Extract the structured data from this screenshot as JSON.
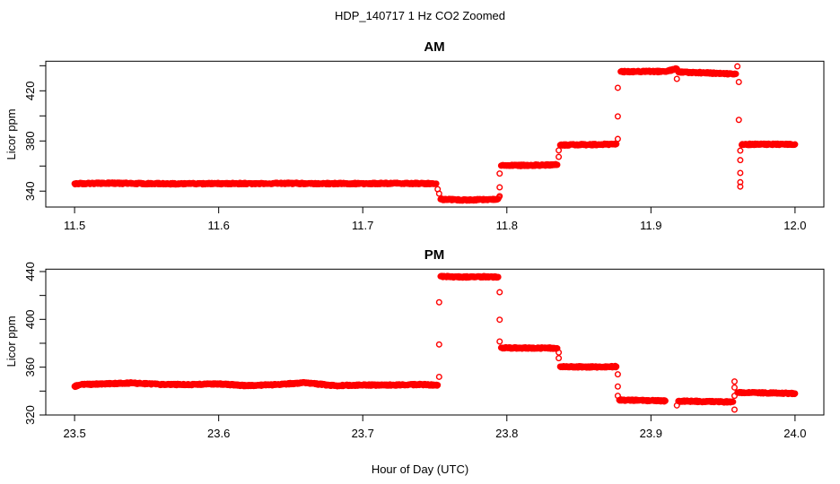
{
  "title": "HDP_140717  1 Hz CO2 Zoomed",
  "xlabel": "Hour of Day (UTC)",
  "marker_color": "#ff0000",
  "chart_data": [
    {
      "type": "scatter",
      "title": "AM",
      "ylabel": "Licor ppm",
      "xlim": [
        11.48,
        12.02
      ],
      "ylim": [
        327.3,
        443.6
      ],
      "xticks": [
        11.5,
        11.6,
        11.7,
        11.8,
        11.9,
        12.0
      ],
      "xtick_labels": [
        "11.5",
        "11.6",
        "11.7",
        "11.8",
        "11.9",
        "12.0"
      ],
      "yticks": [
        340,
        360,
        380,
        400,
        420,
        440
      ],
      "ytick_labels": [
        "340",
        "",
        "380",
        "",
        "420",
        ""
      ],
      "grid": false,
      "marker": "open-circle",
      "points": [
        [
          11.5,
          346
        ],
        [
          11.525,
          346.3
        ],
        [
          11.55,
          346
        ],
        [
          11.575,
          345.8
        ],
        [
          11.6,
          346
        ],
        [
          11.625,
          346
        ],
        [
          11.65,
          346.2
        ],
        [
          11.675,
          346
        ],
        [
          11.7,
          346
        ],
        [
          11.725,
          346.2
        ],
        [
          11.751,
          346
        ],
        [
          11.752,
          341.5
        ],
        [
          11.753,
          338
        ],
        [
          11.754,
          333.5
        ],
        [
          11.765,
          333
        ],
        [
          11.775,
          333
        ],
        [
          11.785,
          333.2
        ],
        [
          11.794,
          333.8
        ],
        [
          11.795,
          336
        ],
        [
          11.795,
          343
        ],
        [
          11.795,
          354
        ],
        [
          11.796,
          360.3
        ],
        [
          11.806,
          360.5
        ],
        [
          11.816,
          360.6
        ],
        [
          11.826,
          360.8
        ],
        [
          11.835,
          361
        ],
        [
          11.836,
          367.3
        ],
        [
          11.836,
          372.5
        ],
        [
          11.837,
          376.7
        ],
        [
          11.847,
          377
        ],
        [
          11.857,
          377
        ],
        [
          11.867,
          377.2
        ],
        [
          11.876,
          377.6
        ],
        [
          11.877,
          381.6
        ],
        [
          11.877,
          399.6
        ],
        [
          11.877,
          422.4
        ],
        [
          11.879,
          435.3
        ],
        [
          11.89,
          435.4
        ],
        [
          11.9,
          435.5
        ],
        [
          11.91,
          435.2
        ],
        [
          11.918,
          437.6
        ],
        [
          11.918,
          429.5
        ],
        [
          11.919,
          435
        ],
        [
          11.93,
          434.6
        ],
        [
          11.94,
          434.2
        ],
        [
          11.95,
          433.8
        ],
        [
          11.959,
          433.5
        ],
        [
          11.96,
          439.5
        ],
        [
          11.961,
          427
        ],
        [
          11.961,
          396.8
        ],
        [
          11.962,
          372.3
        ],
        [
          11.962,
          364.7
        ],
        [
          11.962,
          354.5
        ],
        [
          11.962,
          347.1
        ],
        [
          11.962,
          343.6
        ],
        [
          11.963,
          377
        ],
        [
          11.972,
          377.4
        ],
        [
          11.982,
          377.4
        ],
        [
          11.991,
          377.3
        ],
        [
          12.0,
          377.3
        ]
      ]
    },
    {
      "type": "scatter",
      "title": "PM",
      "ylabel": "Licor ppm",
      "xlim": [
        23.48,
        24.02
      ],
      "ylim": [
        320,
        442
      ],
      "xticks": [
        23.5,
        23.6,
        23.7,
        23.8,
        23.9,
        24.0
      ],
      "xtick_labels": [
        "23.5",
        "23.6",
        "23.7",
        "23.8",
        "23.9",
        "24.0"
      ],
      "yticks": [
        320,
        340,
        360,
        380,
        400,
        420,
        440
      ],
      "ytick_labels": [
        "320",
        "",
        "360",
        "",
        "400",
        "",
        "440"
      ],
      "grid": false,
      "marker": "open-circle",
      "points": [
        [
          23.5,
          344
        ],
        [
          23.505,
          345.5
        ],
        [
          23.52,
          346
        ],
        [
          23.54,
          346.8
        ],
        [
          23.56,
          345.5
        ],
        [
          23.58,
          345.5
        ],
        [
          23.6,
          346
        ],
        [
          23.62,
          344.5
        ],
        [
          23.64,
          345.5
        ],
        [
          23.66,
          347
        ],
        [
          23.68,
          344.5
        ],
        [
          23.7,
          345
        ],
        [
          23.72,
          345
        ],
        [
          23.74,
          345.5
        ],
        [
          23.752,
          345
        ],
        [
          23.753,
          351.9
        ],
        [
          23.753,
          379
        ],
        [
          23.753,
          414.3
        ],
        [
          23.754,
          436
        ],
        [
          23.765,
          435.5
        ],
        [
          23.775,
          435.5
        ],
        [
          23.785,
          435.6
        ],
        [
          23.794,
          435.5
        ],
        [
          23.795,
          422.7
        ],
        [
          23.795,
          399.7
        ],
        [
          23.795,
          381.5
        ],
        [
          23.796,
          376.3
        ],
        [
          23.806,
          376
        ],
        [
          23.816,
          376
        ],
        [
          23.826,
          376
        ],
        [
          23.835,
          375.8
        ],
        [
          23.836,
          372.3
        ],
        [
          23.836,
          367.5
        ],
        [
          23.837,
          360.5
        ],
        [
          23.847,
          360.3
        ],
        [
          23.857,
          360.2
        ],
        [
          23.867,
          360.3
        ],
        [
          23.876,
          360.5
        ],
        [
          23.877,
          354
        ],
        [
          23.877,
          343.8
        ],
        [
          23.877,
          336
        ],
        [
          23.878,
          332.5
        ],
        [
          23.89,
          332.3
        ],
        [
          23.9,
          332
        ],
        [
          23.91,
          331.8
        ],
        [
          23.918,
          328
        ],
        [
          23.919,
          331.6
        ],
        [
          23.93,
          331.4
        ],
        [
          23.94,
          331.2
        ],
        [
          23.95,
          331
        ],
        [
          23.957,
          331
        ],
        [
          23.958,
          348
        ],
        [
          23.958,
          343
        ],
        [
          23.958,
          336
        ],
        [
          23.958,
          324.5
        ],
        [
          23.96,
          338.8
        ],
        [
          23.97,
          338.6
        ],
        [
          23.98,
          338.4
        ],
        [
          23.99,
          338.2
        ],
        [
          24.0,
          338
        ]
      ]
    }
  ]
}
